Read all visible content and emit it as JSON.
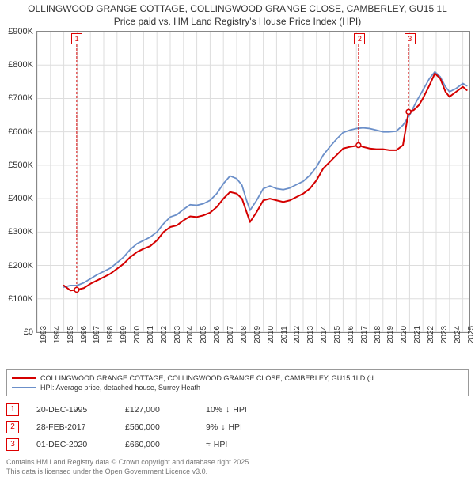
{
  "title_line1": "OLLINGWOOD GRANGE COTTAGE, COLLINGWOOD GRANGE CLOSE, CAMBERLEY, GU15 1L",
  "title_line2": "Price paid vs. HM Land Registry's House Price Index (HPI)",
  "chart": {
    "type": "line",
    "background_color": "#ffffff",
    "grid_color": "#dddddd",
    "border_color": "#888888",
    "text_color": "#333333",
    "y_axis": {
      "min": 0,
      "max": 900000,
      "tick_step": 100000,
      "labels": [
        "£0",
        "£100K",
        "£200K",
        "£300K",
        "£400K",
        "£500K",
        "£600K",
        "£700K",
        "£800K",
        "£900K"
      ]
    },
    "x_axis": {
      "min": 1993,
      "max": 2025.5,
      "ticks": [
        1993,
        1994,
        1995,
        1996,
        1997,
        1998,
        1999,
        2000,
        2001,
        2002,
        2003,
        2004,
        2005,
        2006,
        2007,
        2008,
        2009,
        2010,
        2011,
        2012,
        2013,
        2014,
        2015,
        2016,
        2017,
        2018,
        2019,
        2020,
        2021,
        2022,
        2023,
        2024,
        2025
      ]
    },
    "series": [
      {
        "name": "price_paid",
        "label": "COLLINGWOOD GRANGE COTTAGE, COLLINGWOOD GRANGE CLOSE, CAMBERLEY, GU15 1LD (d",
        "color": "#d40000",
        "line_width": 2,
        "points": [
          [
            1995.0,
            140000
          ],
          [
            1995.5,
            125000
          ],
          [
            1995.97,
            127000
          ],
          [
            1996.5,
            132000
          ],
          [
            1997.0,
            145000
          ],
          [
            1997.5,
            155000
          ],
          [
            1998.0,
            165000
          ],
          [
            1998.5,
            175000
          ],
          [
            1999.0,
            190000
          ],
          [
            1999.5,
            205000
          ],
          [
            2000.0,
            225000
          ],
          [
            2000.5,
            240000
          ],
          [
            2001.0,
            250000
          ],
          [
            2001.5,
            258000
          ],
          [
            2002.0,
            275000
          ],
          [
            2002.5,
            300000
          ],
          [
            2003.0,
            315000
          ],
          [
            2003.5,
            320000
          ],
          [
            2004.0,
            335000
          ],
          [
            2004.5,
            347000
          ],
          [
            2005.0,
            345000
          ],
          [
            2005.5,
            350000
          ],
          [
            2006.0,
            358000
          ],
          [
            2006.5,
            375000
          ],
          [
            2007.0,
            400000
          ],
          [
            2007.5,
            420000
          ],
          [
            2008.0,
            415000
          ],
          [
            2008.4,
            400000
          ],
          [
            2008.7,
            365000
          ],
          [
            2009.0,
            330000
          ],
          [
            2009.5,
            360000
          ],
          [
            2010.0,
            395000
          ],
          [
            2010.5,
            400000
          ],
          [
            2011.0,
            395000
          ],
          [
            2011.5,
            390000
          ],
          [
            2012.0,
            395000
          ],
          [
            2012.5,
            405000
          ],
          [
            2013.0,
            415000
          ],
          [
            2013.5,
            430000
          ],
          [
            2014.0,
            455000
          ],
          [
            2014.5,
            490000
          ],
          [
            2015.0,
            510000
          ],
          [
            2015.5,
            530000
          ],
          [
            2016.0,
            550000
          ],
          [
            2016.5,
            555000
          ],
          [
            2017.0,
            558000
          ],
          [
            2017.16,
            560000
          ],
          [
            2017.5,
            555000
          ],
          [
            2018.0,
            550000
          ],
          [
            2018.5,
            548000
          ],
          [
            2019.0,
            548000
          ],
          [
            2019.5,
            545000
          ],
          [
            2020.0,
            545000
          ],
          [
            2020.5,
            560000
          ],
          [
            2020.92,
            660000
          ],
          [
            2021.3,
            665000
          ],
          [
            2021.7,
            680000
          ],
          [
            2022.0,
            700000
          ],
          [
            2022.5,
            740000
          ],
          [
            2022.9,
            775000
          ],
          [
            2023.3,
            760000
          ],
          [
            2023.7,
            720000
          ],
          [
            2024.0,
            705000
          ],
          [
            2024.5,
            720000
          ],
          [
            2025.0,
            735000
          ],
          [
            2025.3,
            725000
          ]
        ]
      },
      {
        "name": "hpi",
        "label": "HPI: Average price, detached house, Surrey Heath",
        "color": "#6b8fc9",
        "line_width": 1.8,
        "points": [
          [
            1995.0,
            135000
          ],
          [
            1995.5,
            140000
          ],
          [
            1996.0,
            140000
          ],
          [
            1996.5,
            148000
          ],
          [
            1997.0,
            160000
          ],
          [
            1997.5,
            172000
          ],
          [
            1998.0,
            182000
          ],
          [
            1998.5,
            192000
          ],
          [
            1999.0,
            208000
          ],
          [
            1999.5,
            225000
          ],
          [
            2000.0,
            248000
          ],
          [
            2000.5,
            265000
          ],
          [
            2001.0,
            275000
          ],
          [
            2001.5,
            285000
          ],
          [
            2002.0,
            300000
          ],
          [
            2002.5,
            325000
          ],
          [
            2003.0,
            345000
          ],
          [
            2003.5,
            352000
          ],
          [
            2004.0,
            368000
          ],
          [
            2004.5,
            382000
          ],
          [
            2005.0,
            380000
          ],
          [
            2005.5,
            385000
          ],
          [
            2006.0,
            395000
          ],
          [
            2006.5,
            415000
          ],
          [
            2007.0,
            445000
          ],
          [
            2007.5,
            468000
          ],
          [
            2008.0,
            460000
          ],
          [
            2008.4,
            440000
          ],
          [
            2008.7,
            400000
          ],
          [
            2009.0,
            365000
          ],
          [
            2009.5,
            395000
          ],
          [
            2010.0,
            430000
          ],
          [
            2010.5,
            438000
          ],
          [
            2011.0,
            430000
          ],
          [
            2011.5,
            427000
          ],
          [
            2012.0,
            432000
          ],
          [
            2012.5,
            442000
          ],
          [
            2013.0,
            452000
          ],
          [
            2013.5,
            470000
          ],
          [
            2014.0,
            495000
          ],
          [
            2014.5,
            530000
          ],
          [
            2015.0,
            555000
          ],
          [
            2015.5,
            578000
          ],
          [
            2016.0,
            598000
          ],
          [
            2016.5,
            605000
          ],
          [
            2017.0,
            610000
          ],
          [
            2017.5,
            612000
          ],
          [
            2018.0,
            610000
          ],
          [
            2018.5,
            605000
          ],
          [
            2019.0,
            600000
          ],
          [
            2019.5,
            600000
          ],
          [
            2020.0,
            602000
          ],
          [
            2020.5,
            620000
          ],
          [
            2021.0,
            650000
          ],
          [
            2021.5,
            690000
          ],
          [
            2022.0,
            725000
          ],
          [
            2022.5,
            760000
          ],
          [
            2022.9,
            780000
          ],
          [
            2023.3,
            765000
          ],
          [
            2023.7,
            735000
          ],
          [
            2024.0,
            720000
          ],
          [
            2024.5,
            730000
          ],
          [
            2025.0,
            745000
          ],
          [
            2025.3,
            738000
          ]
        ]
      }
    ],
    "marker_points": [
      {
        "idx": "1",
        "x": 1995.97,
        "y": 127000,
        "color": "#d40000"
      },
      {
        "idx": "2",
        "x": 2017.16,
        "y": 560000,
        "color": "#d40000"
      },
      {
        "idx": "3",
        "x": 2020.92,
        "y": 660000,
        "color": "#d40000"
      }
    ]
  },
  "legend": {
    "items": [
      {
        "color": "#d40000",
        "label": "COLLINGWOOD GRANGE COTTAGE, COLLINGWOOD GRANGE CLOSE, CAMBERLEY, GU15 1LD (d"
      },
      {
        "color": "#6b8fc9",
        "label": "HPI: Average price, detached house, Surrey Heath"
      }
    ]
  },
  "marker_table": {
    "rows": [
      {
        "idx": "1",
        "date": "20-DEC-1995",
        "price": "£127,000",
        "delta": "10%",
        "arrow": "↓",
        "suffix": "HPI"
      },
      {
        "idx": "2",
        "date": "28-FEB-2017",
        "price": "£560,000",
        "delta": "9%",
        "arrow": "↓",
        "suffix": "HPI"
      },
      {
        "idx": "3",
        "date": "01-DEC-2020",
        "price": "£660,000",
        "delta": "",
        "arrow": "≈",
        "suffix": "HPI"
      }
    ]
  },
  "footer_line1": "Contains HM Land Registry data © Crown copyright and database right 2025.",
  "footer_line2": "This data is licensed under the Open Government Licence v3.0."
}
